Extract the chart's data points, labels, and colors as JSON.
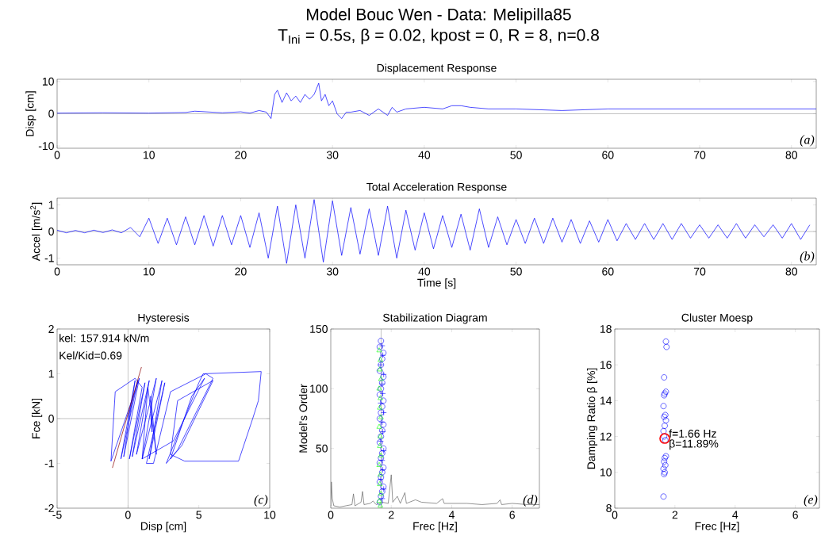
{
  "chart_data": [
    {
      "type": "other",
      "title": "Model Bouc Wen - Data: Melipilla85",
      "subtitle": "T$_{Ini}$ = 0.5s, β = 0.02, kpost = 0, R = 8, n=0.8"
    },
    {
      "type": "line",
      "title": "Displacement Response",
      "ylabel": "Disp [cm]",
      "xlim": [
        0,
        82.7
      ],
      "ylim": [
        -10.7,
        10.7
      ],
      "xticks": [
        0,
        10,
        20,
        30,
        40,
        50,
        60,
        70,
        80
      ],
      "yticks": [
        -10,
        0,
        10
      ],
      "ref_lines": [
        {
          "axis": "y",
          "value": 0,
          "color": "#999999"
        }
      ],
      "annotations": [
        "(a)"
      ],
      "series": [
        {
          "color": "#0000ff",
          "x": [
            0,
            5,
            10,
            14,
            15,
            18,
            20,
            21,
            22,
            22.8,
            23.3,
            23.7,
            24,
            24.5,
            25,
            25.5,
            26,
            26.5,
            27,
            27.5,
            28,
            28.5,
            28.8,
            29.2,
            29.6,
            30,
            30.5,
            31,
            31.5,
            32,
            33,
            34,
            35,
            36,
            36.5,
            37,
            38,
            40,
            42,
            43,
            44,
            45,
            47,
            50,
            55,
            60,
            65,
            70,
            75,
            82.7
          ],
          "values": [
            0.2,
            0.3,
            0.2,
            0.4,
            0.8,
            0.3,
            0.6,
            0.2,
            1,
            0.5,
            -1.5,
            6,
            7.3,
            3.5,
            6.5,
            4,
            5.5,
            3.5,
            6,
            4.5,
            6,
            9.5,
            4,
            6,
            2.5,
            4,
            0,
            -1.5,
            0.5,
            0.5,
            1,
            -0.5,
            1.5,
            -0.5,
            2,
            0.5,
            1.5,
            2,
            1.5,
            2.5,
            2.5,
            2,
            1.5,
            1.5,
            1,
            1.5,
            1.5,
            1.5,
            1.5,
            1.5
          ]
        }
      ]
    },
    {
      "type": "line",
      "title": "Total Acceleration Response",
      "xlabel": "Time [s]",
      "ylabel": "Accel [m/s$^{2}$]",
      "xlim": [
        0,
        82.7
      ],
      "ylim": [
        -1.25,
        1.25
      ],
      "xticks": [
        0,
        10,
        20,
        30,
        40,
        50,
        60,
        70,
        80
      ],
      "yticks": [
        -1,
        0,
        1
      ],
      "ref_lines": [
        {
          "axis": "y",
          "value": 0,
          "color": "#999999"
        }
      ],
      "annotations": [
        "(b)"
      ],
      "series": [
        {
          "color": "#0000ff",
          "x": [
            0,
            1,
            2,
            3,
            4,
            5,
            6,
            7,
            8,
            9,
            10,
            11,
            12,
            13,
            14,
            15,
            16,
            17,
            18,
            19,
            20,
            21,
            22,
            23,
            24,
            25,
            26,
            27,
            28,
            29,
            30,
            31,
            32,
            33,
            34,
            35,
            36,
            37,
            38,
            39,
            40,
            41,
            42,
            43,
            44,
            45,
            46,
            47,
            48,
            49,
            50,
            51,
            52,
            53,
            54,
            55,
            56,
            57,
            58,
            59,
            60,
            61,
            62,
            63,
            64,
            65,
            66,
            67,
            68,
            69,
            70,
            71,
            72,
            73,
            74,
            75,
            76,
            77,
            78,
            79,
            80,
            81,
            82
          ],
          "values": [
            0.05,
            -0.05,
            0.04,
            -0.05,
            0.05,
            -0.04,
            0.06,
            -0.05,
            0.15,
            -0.2,
            0.5,
            -0.45,
            0.5,
            -0.5,
            0.55,
            -0.5,
            0.6,
            -0.55,
            0.6,
            -0.5,
            0.6,
            -0.6,
            0.7,
            -1.0,
            0.95,
            -1.2,
            1.0,
            -1.0,
            1.2,
            -1.15,
            1.15,
            -0.9,
            0.9,
            -0.85,
            0.85,
            -0.9,
            0.95,
            -1.0,
            0.8,
            -0.7,
            0.7,
            -0.65,
            0.6,
            -0.6,
            0.65,
            -0.7,
            0.85,
            -0.6,
            0.55,
            -0.5,
            0.45,
            -0.45,
            0.5,
            -0.45,
            0.5,
            -0.4,
            0.45,
            -0.45,
            0.4,
            -0.4,
            0.45,
            -0.35,
            0.3,
            -0.3,
            0.3,
            -0.3,
            0.3,
            -0.3,
            0.3,
            -0.25,
            0.25,
            -0.25,
            0.25,
            -0.25,
            0.3,
            -0.25,
            0.25,
            -0.2,
            0.25,
            -0.25,
            0.3,
            -0.3,
            0.25
          ]
        }
      ]
    },
    {
      "type": "line",
      "title": "Hysteresis",
      "xlabel": "Disp [cm]",
      "ylabel": "Fce [kN]",
      "xlim": [
        -5,
        10
      ],
      "ylim": [
        -2,
        2
      ],
      "xticks": [
        -5,
        0,
        5,
        10
      ],
      "yticks": [
        -2,
        -1,
        0,
        1,
        2
      ],
      "ref_lines": [
        {
          "axis": "y",
          "value": 0,
          "color": "#999999"
        },
        {
          "axis": "x",
          "value": 0,
          "color": "#999999"
        }
      ],
      "annotations": [
        "kel: 157.914 kN/m",
        "Kel/Kid=0.69",
        "(c)"
      ],
      "series": [
        {
          "color": "#0000ff",
          "x": [
            0,
            0.7,
            -0.5,
            0.5,
            -0.3,
            0.8,
            -1.2,
            -0.9,
            0.5,
            1.0,
            0.1,
            1.2,
            0.3,
            1.5,
            0.6,
            2.0,
            1.0,
            2.4,
            1.5,
            2.6,
            1.3,
            1.8,
            3.0,
            5.5,
            6.0,
            3.5,
            2.7,
            5.0,
            5.3,
            9.4,
            9.2,
            8.8,
            7.8,
            4.0,
            3.0,
            3.5,
            6.0,
            3.8,
            3.0,
            4.5,
            5.4,
            3.2,
            1.0,
            1.4,
            2.0,
            1.6,
            1.7,
            1.6
          ],
          "values": [
            0,
            0.85,
            -0.9,
            0.85,
            -0.85,
            0.9,
            -0.95,
            0.6,
            0.9,
            0.7,
            -0.9,
            0.8,
            -0.85,
            0.85,
            -0.8,
            0.9,
            -0.9,
            0.85,
            -0.9,
            0.8,
            -1.0,
            -1.0,
            0.6,
            1.0,
            0.9,
            -0.7,
            -1.0,
            0.8,
            1.0,
            1.05,
            0.4,
            0,
            -0.95,
            -0.95,
            -0.8,
            0.4,
            0.85,
            -0.6,
            -0.9,
            0.5,
            0.9,
            -0.5,
            -0.9,
            0.7,
            -0.8,
            0.5,
            -0.3,
            0.1
          ]
        },
        {
          "color": "#8b0000",
          "x": [
            -1.1,
            0.95
          ],
          "values": [
            -1.1,
            1.15
          ]
        }
      ]
    },
    {
      "type": "scatter",
      "title": "Stabilization Diagram",
      "xlabel": "Frec [Hz]",
      "ylabel": "Model's Order",
      "xlim": [
        0,
        6.9
      ],
      "ylim": [
        0,
        150
      ],
      "xticks": [
        0,
        2,
        4,
        6
      ],
      "yticks": [
        50,
        100,
        150
      ],
      "ref_lines": [
        {
          "axis": "x",
          "value": 1.66,
          "color": "#666666"
        }
      ],
      "annotations": [
        "(d)"
      ],
      "series": [
        {
          "type": "line",
          "color": "#666666",
          "marker": "none",
          "x": [
            0,
            0.02,
            0.05,
            0.1,
            0.3,
            0.5,
            0.7,
            0.75,
            0.8,
            1.0,
            1.05,
            1.1,
            1.3,
            1.4,
            1.5,
            1.7,
            1.9,
            2.0,
            2.05,
            2.2,
            2.3,
            2.45,
            2.5,
            2.8,
            3.0,
            3.5,
            3.7,
            3.75,
            4.5,
            5.0,
            5.5,
            5.6,
            5.65,
            6.0,
            6.5,
            6.9
          ],
          "values": [
            2,
            22,
            8,
            2,
            1,
            2,
            3,
            12,
            2,
            5,
            14,
            3,
            4,
            6,
            3,
            5,
            4,
            28,
            5,
            10,
            4,
            13,
            4,
            7,
            5,
            4,
            8,
            4,
            4,
            3,
            4,
            7,
            3,
            4,
            3,
            3
          ]
        },
        {
          "color": "#0000ff",
          "marker": "circle",
          "x": [
            1.62,
            1.66,
            1.7,
            1.74,
            1.62,
            1.66,
            1.7,
            1.74,
            1.62,
            1.66,
            1.7,
            1.74,
            1.62,
            1.66,
            1.7,
            1.74,
            1.62,
            1.66,
            1.7,
            1.74,
            1.62,
            1.66,
            1.7,
            1.74,
            1.62,
            1.66,
            1.7,
            1.74,
            1.62,
            1.66
          ],
          "values": [
            5,
            10,
            14,
            18,
            22,
            26,
            30,
            34,
            38,
            42,
            46,
            50,
            55,
            60,
            65,
            70,
            75,
            80,
            85,
            90,
            95,
            100,
            105,
            110,
            115,
            120,
            125,
            130,
            135,
            140
          ]
        },
        {
          "color": "#0000ff",
          "marker": "cross",
          "x": [
            1.7,
            1.75,
            1.65,
            1.72,
            1.7,
            1.75,
            1.65,
            1.72,
            1.7,
            1.75,
            1.65,
            1.72,
            1.7,
            1.75,
            1.65,
            1.72,
            1.7
          ],
          "values": [
            8,
            16,
            24,
            32,
            40,
            48,
            56,
            64,
            72,
            80,
            88,
            96,
            104,
            112,
            120,
            128,
            136
          ]
        },
        {
          "color": "#00ff00",
          "marker": "triangle",
          "x": [
            1.64,
            1.6,
            1.66,
            1.62,
            1.64,
            1.6,
            1.66,
            1.62,
            1.64,
            1.6,
            1.66,
            1.62,
            1.64,
            1.6,
            1.66,
            1.62,
            1.64,
            1.6
          ],
          "values": [
            2,
            6,
            12,
            20,
            28,
            36,
            44,
            52,
            60,
            68,
            76,
            84,
            92,
            100,
            108,
            116,
            124,
            132
          ]
        }
      ]
    },
    {
      "type": "scatter",
      "title": "Cluster Moesp",
      "xlabel": "Frec [Hz]",
      "ylabel": "Damping Ratio β [%]",
      "xlim": [
        0,
        6.8
      ],
      "ylim": [
        8,
        18
      ],
      "xticks": [
        0,
        2,
        4,
        6
      ],
      "yticks": [
        8,
        10,
        12,
        14,
        16,
        18
      ],
      "annotations": [
        {
          "text": "f=1.66 Hz",
          "x": 1.66,
          "y": 11.89
        },
        {
          "text": "β=11.89%",
          "x": 1.66,
          "y": 11.89
        },
        "(e)"
      ],
      "series": [
        {
          "color": "#0000ff",
          "marker": "circle",
          "x": [
            1.62,
            1.64,
            1.66,
            1.62,
            1.68,
            1.64,
            1.66,
            1.7,
            1.68,
            1.64,
            1.62,
            1.66,
            1.7,
            1.64,
            1.68,
            1.62,
            1.64,
            1.66,
            1.7,
            1.64,
            1.72,
            1.7
          ],
          "values": [
            8.65,
            9.9,
            10.0,
            10.2,
            10.4,
            10.6,
            10.8,
            10.9,
            11.8,
            12.0,
            12.3,
            12.6,
            12.9,
            13.1,
            13.2,
            13.7,
            14.3,
            14.4,
            14.5,
            15.3,
            17.0,
            17.3
          ]
        },
        {
          "color": "#ff0000",
          "marker": "circle",
          "x": [
            1.66
          ],
          "values": [
            11.89
          ]
        }
      ]
    }
  ]
}
